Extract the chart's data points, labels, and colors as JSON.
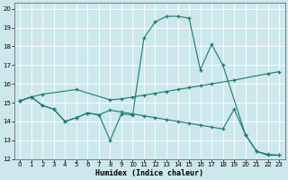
{
  "xlabel": "Humidex (Indice chaleur)",
  "background_color": "#cde8ec",
  "grid_color": "#b0d4d8",
  "line_color": "#1a7a6e",
  "xlim": [
    -0.5,
    23.5
  ],
  "ylim": [
    12,
    20.3
  ],
  "xticks": [
    0,
    1,
    2,
    3,
    4,
    5,
    6,
    7,
    8,
    9,
    10,
    11,
    12,
    13,
    14,
    15,
    16,
    17,
    18,
    19,
    20,
    21,
    22,
    23
  ],
  "yticks": [
    12,
    13,
    14,
    15,
    16,
    17,
    18,
    19,
    20
  ],
  "curve1_x": [
    0,
    1,
    2,
    3,
    4,
    5,
    6,
    7,
    8,
    9,
    10,
    11,
    12,
    13,
    14,
    15,
    16,
    17,
    18,
    20,
    21,
    22,
    23
  ],
  "curve1_y": [
    15.1,
    15.3,
    14.85,
    14.65,
    14.0,
    14.2,
    14.45,
    14.35,
    13.0,
    14.4,
    14.35,
    18.45,
    19.3,
    19.6,
    19.6,
    19.5,
    16.75,
    18.1,
    17.0,
    13.3,
    12.4,
    12.2,
    12.2
  ],
  "curve2_x": [
    0,
    1,
    2,
    5,
    8,
    9,
    10,
    11,
    12,
    13,
    14,
    15,
    16,
    17,
    19,
    22,
    23
  ],
  "curve2_y": [
    15.1,
    15.3,
    15.45,
    15.7,
    15.15,
    15.2,
    15.3,
    15.4,
    15.5,
    15.6,
    15.7,
    15.8,
    15.9,
    16.0,
    16.2,
    16.55,
    16.65
  ],
  "curve3_x": [
    0,
    1,
    2,
    3,
    4,
    5,
    6,
    7,
    8,
    9,
    10,
    11,
    12,
    13,
    14,
    15,
    16,
    17,
    18,
    19,
    20,
    21,
    22,
    23
  ],
  "curve3_y": [
    15.1,
    15.3,
    14.85,
    14.65,
    14.0,
    14.2,
    14.45,
    14.35,
    14.6,
    14.5,
    14.4,
    14.3,
    14.2,
    14.1,
    14.0,
    13.9,
    13.8,
    13.7,
    13.6,
    14.65,
    13.3,
    12.4,
    12.25,
    12.2
  ]
}
